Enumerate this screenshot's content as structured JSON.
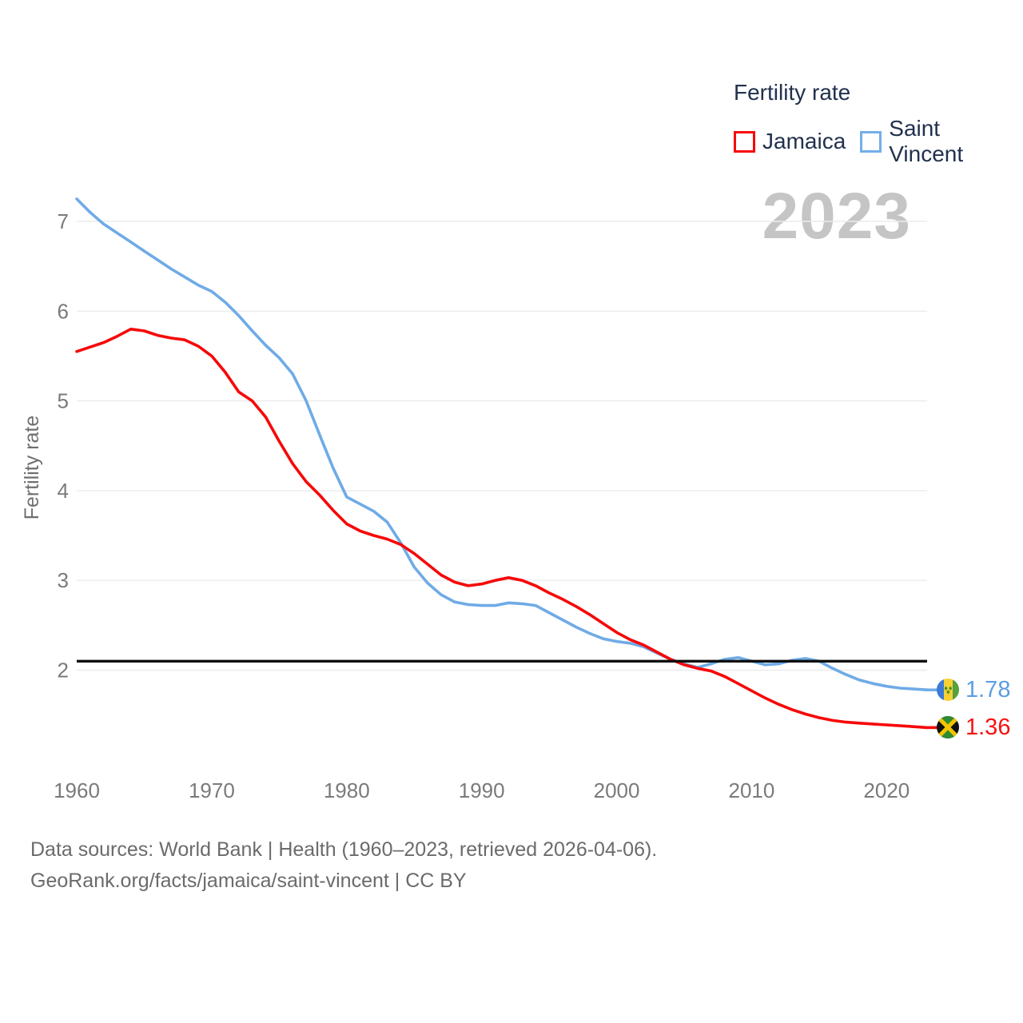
{
  "legend": {
    "title": "Fertility rate",
    "items": [
      {
        "label": "Jamaica",
        "color": "#f70808"
      },
      {
        "label": "Saint Vincent",
        "color": "#6fabe6"
      }
    ]
  },
  "watermark": "2023",
  "chart_data": {
    "type": "line",
    "title": "Fertility rate",
    "ylabel": "Fertility rate",
    "xlabel": "",
    "ylim": [
      1.2,
      7.3
    ],
    "yticks": [
      2,
      3,
      4,
      5,
      6,
      7
    ],
    "xticks": [
      1960,
      1970,
      1980,
      1990,
      2000,
      2010,
      2020
    ],
    "grid": true,
    "legend_position": "top-right",
    "reference_line": {
      "value": 2.1,
      "color": "#0d0d0d"
    },
    "x": [
      1960,
      1961,
      1962,
      1963,
      1964,
      1965,
      1966,
      1967,
      1968,
      1969,
      1970,
      1971,
      1972,
      1973,
      1974,
      1975,
      1976,
      1977,
      1978,
      1979,
      1980,
      1981,
      1982,
      1983,
      1984,
      1985,
      1986,
      1987,
      1988,
      1989,
      1990,
      1991,
      1992,
      1993,
      1994,
      1995,
      1996,
      1997,
      1998,
      1999,
      2000,
      2001,
      2002,
      2003,
      2004,
      2005,
      2006,
      2007,
      2008,
      2009,
      2010,
      2011,
      2012,
      2013,
      2014,
      2015,
      2016,
      2017,
      2018,
      2019,
      2020,
      2021,
      2022,
      2023
    ],
    "series": [
      {
        "name": "Jamaica",
        "color": "#f70808",
        "end_label": "1.36",
        "values": [
          5.55,
          5.6,
          5.65,
          5.72,
          5.8,
          5.78,
          5.73,
          5.7,
          5.68,
          5.61,
          5.5,
          5.32,
          5.1,
          5.0,
          4.82,
          4.55,
          4.3,
          4.1,
          3.95,
          3.78,
          3.63,
          3.55,
          3.5,
          3.46,
          3.4,
          3.3,
          3.18,
          3.06,
          2.98,
          2.94,
          2.96,
          3.0,
          3.03,
          3.0,
          2.94,
          2.86,
          2.79,
          2.71,
          2.62,
          2.52,
          2.42,
          2.34,
          2.28,
          2.2,
          2.12,
          2.06,
          2.02,
          1.99,
          1.93,
          1.85,
          1.77,
          1.69,
          1.62,
          1.56,
          1.51,
          1.47,
          1.44,
          1.42,
          1.41,
          1.4,
          1.39,
          1.38,
          1.37,
          1.36
        ]
      },
      {
        "name": "Saint Vincent",
        "color": "#6fabe6",
        "end_label": "1.78",
        "values": [
          7.25,
          7.1,
          6.97,
          6.87,
          6.77,
          6.67,
          6.57,
          6.47,
          6.38,
          6.29,
          6.22,
          6.1,
          5.95,
          5.78,
          5.62,
          5.48,
          5.3,
          5.0,
          4.62,
          4.25,
          3.93,
          3.85,
          3.77,
          3.65,
          3.42,
          3.15,
          2.97,
          2.84,
          2.76,
          2.73,
          2.72,
          2.72,
          2.75,
          2.74,
          2.72,
          2.64,
          2.56,
          2.48,
          2.41,
          2.35,
          2.32,
          2.3,
          2.26,
          2.19,
          2.12,
          2.07,
          2.03,
          2.07,
          2.12,
          2.14,
          2.1,
          2.06,
          2.07,
          2.11,
          2.13,
          2.1,
          2.02,
          1.95,
          1.89,
          1.85,
          1.82,
          1.8,
          1.79,
          1.78
        ]
      }
    ]
  },
  "end_labels": {
    "saint_vincent": "1.78",
    "jamaica": "1.36"
  },
  "footer": {
    "line1": "Data sources: World Bank | Health (1960–2023, retrieved 2026-04-06).",
    "line2": "GeoRank.org/facts/jamaica/saint-vincent | CC BY"
  }
}
